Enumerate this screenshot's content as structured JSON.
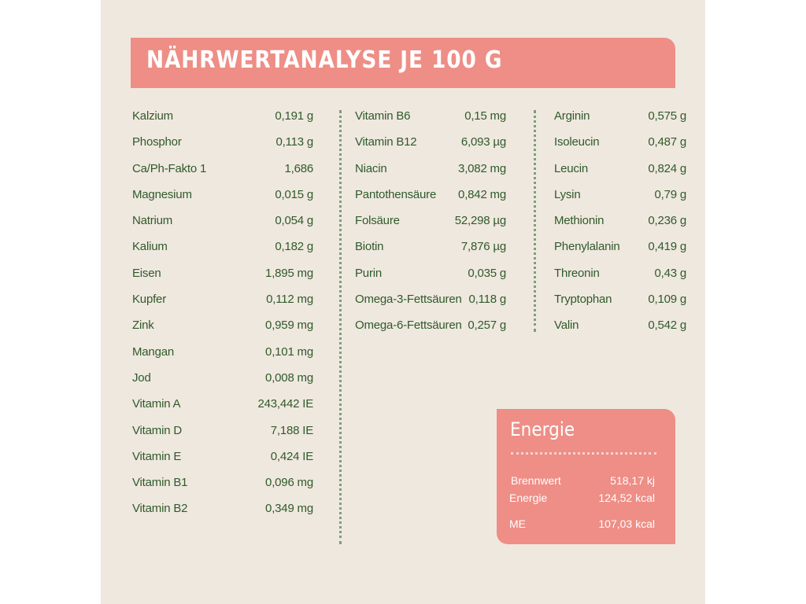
{
  "title": "NÄHRWERTANALYSE JE 100 G",
  "columns": [
    [
      {
        "label": "Kalzium",
        "value": "0,191 g"
      },
      {
        "label": "Phosphor",
        "value": "0,113 g"
      },
      {
        "label": "Ca/Ph-Fakto 1",
        "value": "1,686"
      },
      {
        "label": "Magnesium",
        "value": "0,015 g"
      },
      {
        "label": "Natrium",
        "value": "0,054 g"
      },
      {
        "label": "Kalium",
        "value": "0,182 g"
      },
      {
        "label": "Eisen",
        "value": "1,895 mg"
      },
      {
        "label": "Kupfer",
        "value": "0,112 mg"
      },
      {
        "label": "Zink",
        "value": "0,959 mg"
      },
      {
        "label": "Mangan",
        "value": "0,101 mg"
      },
      {
        "label": "Jod",
        "value": "0,008 mg"
      },
      {
        "label": "Vitamin A",
        "value": "243,442 IE"
      },
      {
        "label": "Vitamin D",
        "value": "7,188 IE"
      },
      {
        "label": "Vitamin E",
        "value": "0,424 IE"
      },
      {
        "label": "Vitamin B1",
        "value": "0,096 mg"
      },
      {
        "label": "Vitamin B2",
        "value": "0,349 mg"
      }
    ],
    [
      {
        "label": "Vitamin B6",
        "value": "0,15 mg"
      },
      {
        "label": "Vitamin B12",
        "value": "6,093 µg"
      },
      {
        "label": "Niacin",
        "value": "3,082 mg"
      },
      {
        "label": "Pantothensäure",
        "value": "0,842 mg"
      },
      {
        "label": "Folsäure",
        "value": "52,298 µg"
      },
      {
        "label": "Biotin",
        "value": "7,876 µg"
      },
      {
        "label": "Purin",
        "value": "0,035 g"
      },
      {
        "label": "Omega-3-Fettsäuren",
        "value": "0,118 g"
      },
      {
        "label": "Omega-6-Fettsäuren",
        "value": "0,257 g"
      }
    ],
    [
      {
        "label": "Arginin",
        "value": "0,575 g"
      },
      {
        "label": "Isoleucin",
        "value": "0,487 g"
      },
      {
        "label": "Leucin",
        "value": "0,824 g"
      },
      {
        "label": "Lysin",
        "value": "0,79 g"
      },
      {
        "label": "Methionin",
        "value": "0,236 g"
      },
      {
        "label": "Phenylalanin",
        "value": "0,419 g"
      },
      {
        "label": "Threonin",
        "value": "0,43 g"
      },
      {
        "label": "Tryptophan",
        "value": "0,109 g"
      },
      {
        "label": "Valin",
        "value": "0,542 g"
      }
    ]
  ],
  "energy": {
    "title": "Energie",
    "rows": [
      {
        "label": "Brennwert",
        "value": "518,17 kj"
      },
      {
        "label": "Energie",
        "value": "124,52 kcal"
      },
      {
        "label": "ME",
        "value": "107,03 kcal"
      }
    ]
  },
  "colors": {
    "background": "#efe8df",
    "accent": "#ee8e86",
    "text": "#2f5a2a",
    "divider": "#7aa07a"
  }
}
